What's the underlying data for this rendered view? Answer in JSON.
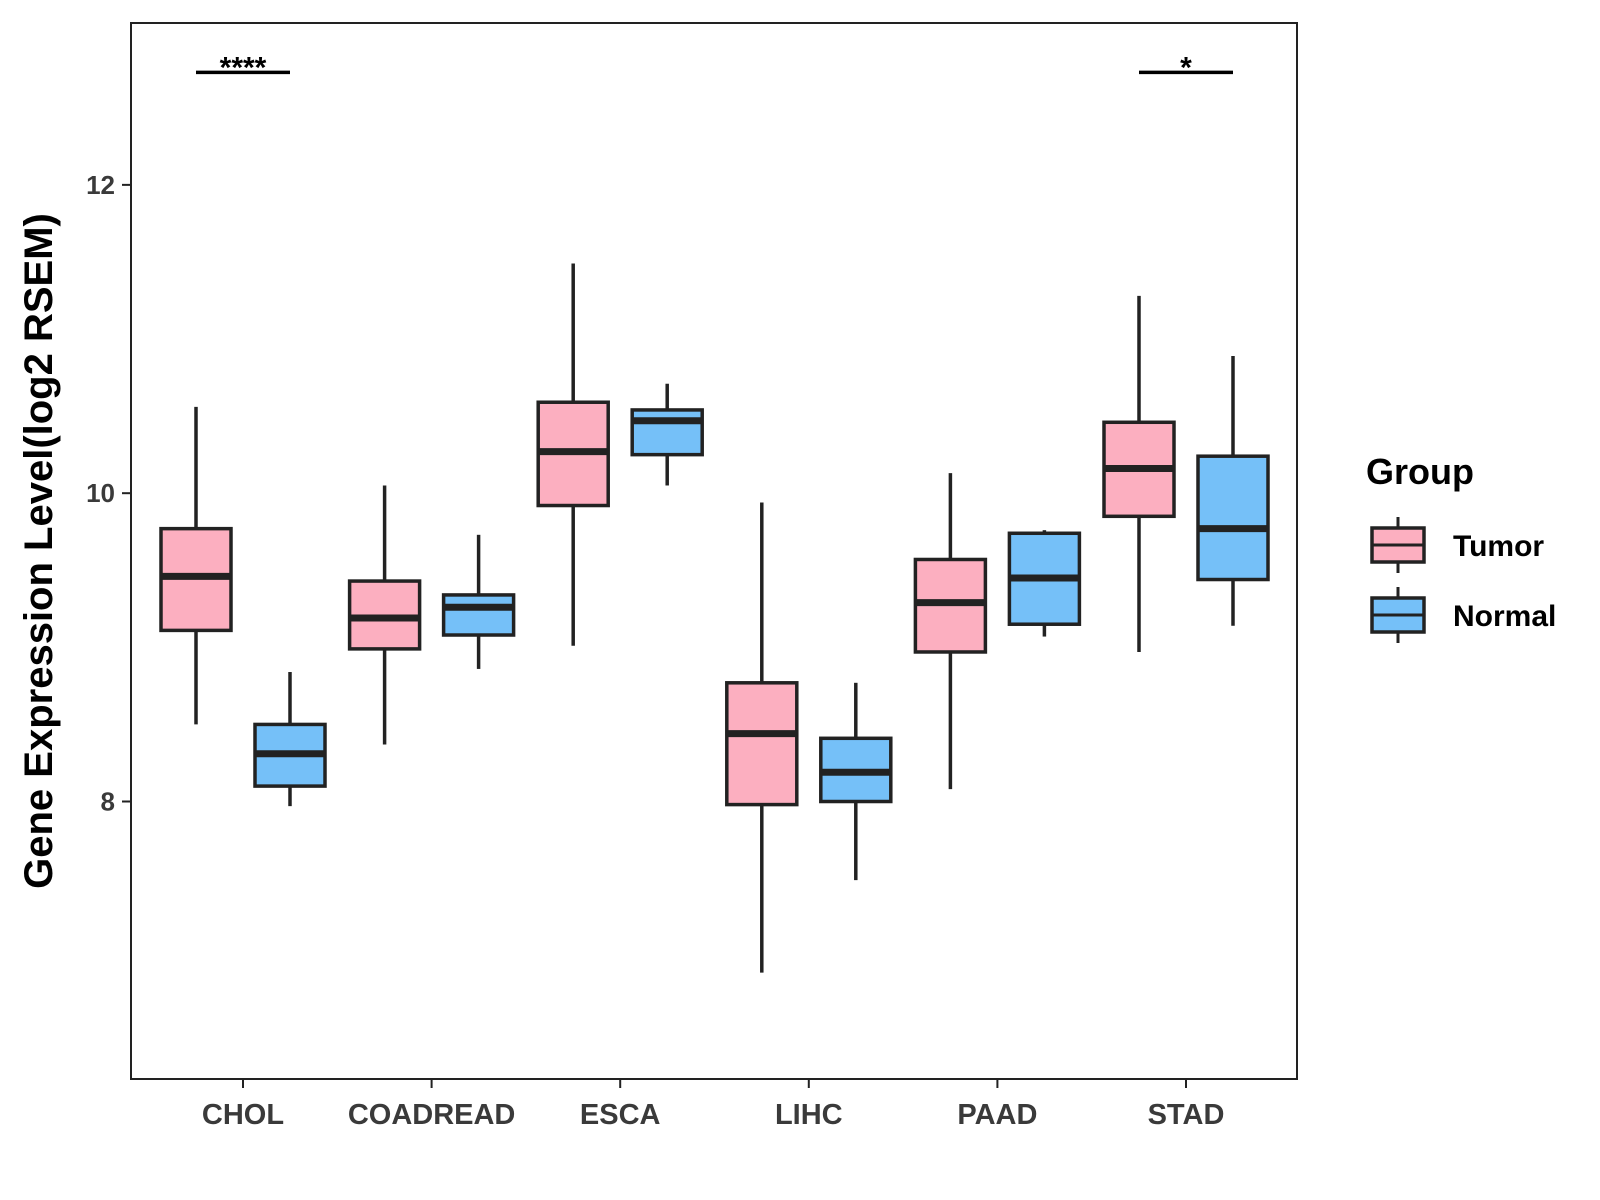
{
  "chart_data": {
    "type": "boxplot",
    "title": "",
    "xlabel": "",
    "ylabel": "Gene Expression Level(log2 RSEM)",
    "ylim": [
      6.2,
      13.05
    ],
    "yticks": [
      8,
      10,
      12
    ],
    "categories": [
      "CHOL",
      "COADREAD",
      "ESCA",
      "LIHC",
      "PAAD",
      "STAD"
    ],
    "legend": {
      "title": "Group",
      "position": "right",
      "entries": [
        {
          "name": "Tumor",
          "color": "#FCAFC0"
        },
        {
          "name": "Normal",
          "color": "#75C0F8"
        }
      ]
    },
    "series": [
      {
        "name": "Tumor",
        "color": "#FCAFC0",
        "boxes": [
          {
            "category": "CHOL",
            "whisker_low": 8.5,
            "q1": 9.11,
            "median": 9.46,
            "q3": 9.77,
            "whisker_high": 10.56
          },
          {
            "category": "COADREAD",
            "whisker_low": 8.37,
            "q1": 8.99,
            "median": 9.19,
            "q3": 9.43,
            "whisker_high": 10.05
          },
          {
            "category": "ESCA",
            "whisker_low": 9.01,
            "q1": 9.92,
            "median": 10.27,
            "q3": 10.59,
            "whisker_high": 11.49
          },
          {
            "category": "LIHC",
            "whisker_low": 6.89,
            "q1": 7.98,
            "median": 8.44,
            "q3": 8.77,
            "whisker_high": 9.94
          },
          {
            "category": "PAAD",
            "whisker_low": 8.08,
            "q1": 8.97,
            "median": 9.29,
            "q3": 9.57,
            "whisker_high": 10.13
          },
          {
            "category": "STAD",
            "whisker_low": 8.97,
            "q1": 9.85,
            "median": 10.16,
            "q3": 10.46,
            "whisker_high": 11.28
          }
        ]
      },
      {
        "name": "Normal",
        "color": "#75C0F8",
        "boxes": [
          {
            "category": "CHOL",
            "whisker_low": 7.97,
            "q1": 8.1,
            "median": 8.31,
            "q3": 8.5,
            "whisker_high": 8.84
          },
          {
            "category": "COADREAD",
            "whisker_low": 8.86,
            "q1": 9.08,
            "median": 9.26,
            "q3": 9.34,
            "whisker_high": 9.73
          },
          {
            "category": "ESCA",
            "whisker_low": 10.05,
            "q1": 10.25,
            "median": 10.47,
            "q3": 10.54,
            "whisker_high": 10.71
          },
          {
            "category": "LIHC",
            "whisker_low": 7.49,
            "q1": 8.0,
            "median": 8.19,
            "q3": 8.41,
            "whisker_high": 8.77
          },
          {
            "category": "PAAD",
            "whisker_low": 9.07,
            "q1": 9.15,
            "median": 9.45,
            "q3": 9.74,
            "whisker_high": 9.76
          },
          {
            "category": "STAD",
            "whisker_low": 9.14,
            "q1": 9.44,
            "median": 9.77,
            "q3": 10.24,
            "whisker_high": 10.89
          }
        ]
      }
    ],
    "significance": [
      {
        "category": "CHOL",
        "label": "****",
        "y": 12.73
      },
      {
        "category": "STAD",
        "label": "*",
        "y": 12.73
      }
    ]
  }
}
